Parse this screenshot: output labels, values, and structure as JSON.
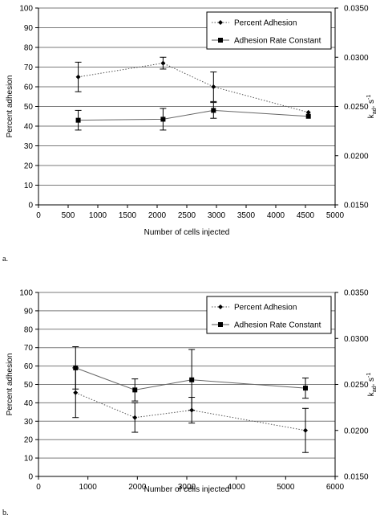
{
  "chart_data": [
    {
      "type": "line",
      "panel_label": "a.",
      "xlabel": "Number of cells injected",
      "ylabel": "Percent adhesion",
      "y2label_main": "k",
      "y2label_sub": "ad",
      "y2label_unit": ", s",
      "y2label_sup": "-1",
      "xlim": [
        0,
        5000
      ],
      "xticks": [
        0,
        500,
        1000,
        1500,
        2000,
        2500,
        3000,
        3500,
        4000,
        4500,
        5000
      ],
      "ylim": [
        0,
        100
      ],
      "yticks": [
        0,
        10,
        20,
        30,
        40,
        50,
        60,
        70,
        80,
        90,
        100
      ],
      "y2lim": [
        0.015,
        0.035
      ],
      "y2ticks": [
        "0.0150",
        "0.0200",
        "0.0250",
        "0.0300",
        "0.0350"
      ],
      "grid": true,
      "legend_position": "top-right",
      "series": [
        {
          "name": "Percent Adhesion",
          "marker": "diamond",
          "line": "dotted",
          "axis": "left",
          "x": [
            670,
            2100,
            2950,
            4550
          ],
          "y": [
            65,
            72,
            60,
            47
          ],
          "err": [
            7.5,
            3,
            7.5,
            null
          ]
        },
        {
          "name": "Adhesion Rate Constant",
          "marker": "square",
          "line": "solid",
          "axis": "left",
          "x": [
            670,
            2100,
            2950,
            4550
          ],
          "y": [
            43,
            43.5,
            48,
            45
          ],
          "err": [
            5,
            5.5,
            4,
            null
          ]
        }
      ]
    },
    {
      "type": "line",
      "panel_label": "b.",
      "xlabel": "Number of cells injected",
      "ylabel": "Percent adhesion",
      "y2label_main": "k",
      "y2label_sub": "ad",
      "y2label_unit": ", s",
      "y2label_sup": "-1",
      "xlim": [
        0,
        6000
      ],
      "xticks": [
        0,
        1000,
        2000,
        3000,
        4000,
        5000,
        6000
      ],
      "ylim": [
        0,
        100
      ],
      "yticks": [
        0,
        10,
        20,
        30,
        40,
        50,
        60,
        70,
        80,
        90,
        100
      ],
      "y2lim": [
        0.015,
        0.035
      ],
      "y2ticks": [
        "0.0150",
        "0.0200",
        "0.0250",
        "0.0300",
        "0.0350"
      ],
      "grid": true,
      "legend_position": "top-right",
      "series": [
        {
          "name": "Percent Adhesion",
          "marker": "diamond",
          "line": "dotted",
          "axis": "left",
          "x": [
            750,
            1950,
            3100,
            5400
          ],
          "y": [
            45.5,
            32,
            36,
            25
          ],
          "err": [
            13.5,
            8,
            7,
            12
          ]
        },
        {
          "name": "Adhesion Rate Constant",
          "marker": "square",
          "line": "solid",
          "axis": "left",
          "x": [
            750,
            1950,
            3100,
            5400
          ],
          "y": [
            59,
            47,
            52.5,
            48
          ],
          "err": [
            11.5,
            6,
            16.5,
            5.5
          ]
        }
      ]
    }
  ]
}
